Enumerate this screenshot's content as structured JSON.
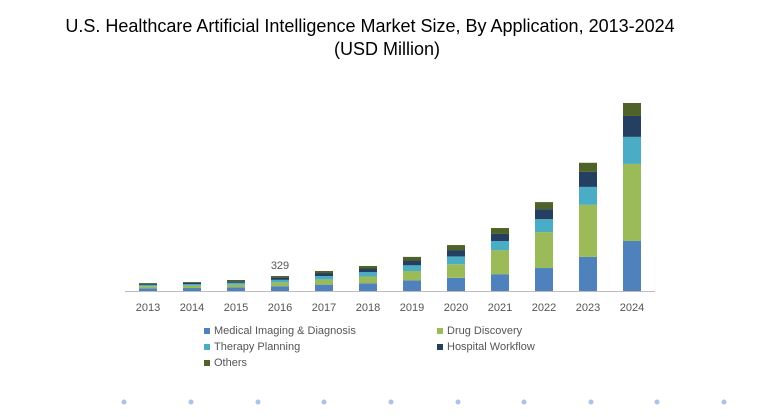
{
  "chart_data": {
    "type": "stacked_bar",
    "title": "U.S. Healthcare Artificial Intelligence Market Size, By Application, 2013-2024",
    "subtitle": "(USD Million)",
    "categories": [
      "2013",
      "2014",
      "2015",
      "2016",
      "2017",
      "2018",
      "2019",
      "2020",
      "2021",
      "2022",
      "2023",
      "2024"
    ],
    "series": [
      {
        "name": "Medical Imaging & Diagnosis",
        "color": "#4f81bd",
        "values": [
          60,
          65,
          80,
          105,
          140,
          170,
          230,
          290,
          370,
          505,
          750,
          1100
        ]
      },
      {
        "name": "Drug Discovery",
        "color": "#9bbb59",
        "values": [
          45,
          50,
          60,
          85,
          115,
          150,
          210,
          300,
          530,
          790,
          1145,
          1695
        ]
      },
      {
        "name": "Therapy Planning",
        "color": "#4bacc6",
        "values": [
          30,
          35,
          40,
          55,
          75,
          95,
          125,
          170,
          200,
          285,
          395,
          595
        ]
      },
      {
        "name": "Hospital Workflow",
        "color": "#243f60",
        "values": [
          25,
          28,
          35,
          50,
          65,
          80,
          105,
          140,
          155,
          220,
          330,
          460
        ]
      },
      {
        "name": "Others",
        "color": "#4f6228",
        "values": [
          16,
          20,
          27,
          34,
          45,
          55,
          80,
          110,
          130,
          155,
          200,
          285
        ]
      }
    ],
    "total_labels": [
      null,
      null,
      null,
      "329",
      null,
      null,
      null,
      null,
      null,
      null,
      null,
      null
    ]
  }
}
